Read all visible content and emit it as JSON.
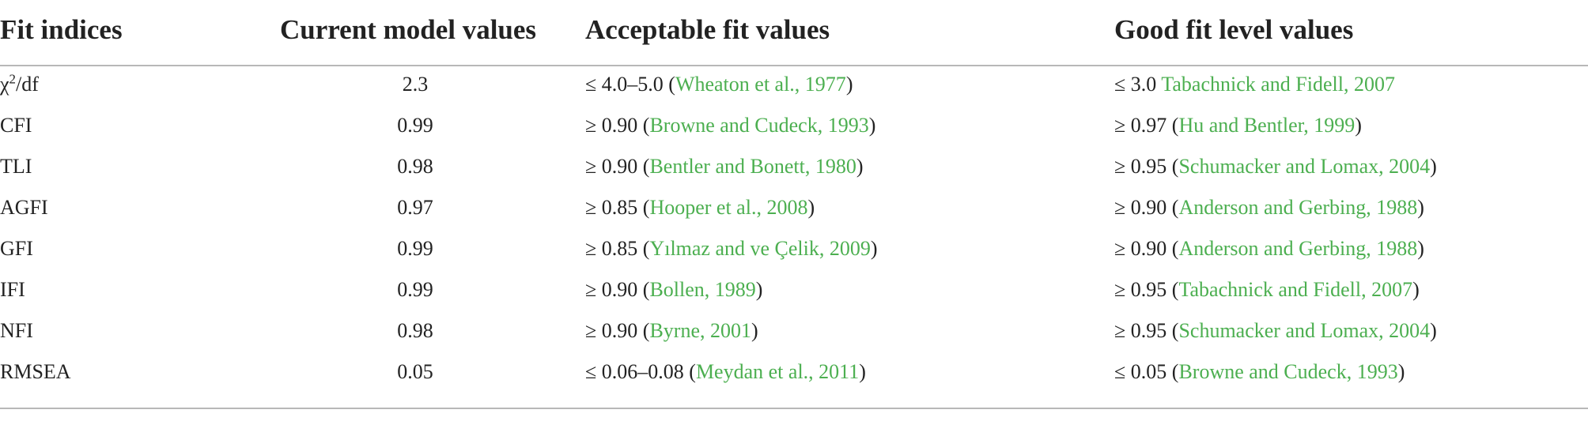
{
  "table": {
    "headers": [
      "Fit indices",
      "Current model values",
      "Acceptable fit values",
      "Good fit level values"
    ],
    "rows": [
      {
        "index_base": "χ",
        "index_sup": "2",
        "index_rest": "/df",
        "current": "2.3",
        "acceptable_prefix": "≤ 4.0–5.0 (",
        "acceptable_ref": "Wheaton et al., 1977",
        "acceptable_suffix": ")",
        "good_prefix": "≤ 3.0 ",
        "good_ref": "Tabachnick and Fidell, 2007",
        "good_suffix": ""
      },
      {
        "index": "CFI",
        "current": "0.99",
        "acceptable_prefix": "≥ 0.90 (",
        "acceptable_ref": "Browne and Cudeck, 1993",
        "acceptable_suffix": ")",
        "good_prefix": "≥ 0.97 (",
        "good_ref": "Hu and Bentler, 1999",
        "good_suffix": ")"
      },
      {
        "index": "TLI",
        "current": "0.98",
        "acceptable_prefix": "≥ 0.90 (",
        "acceptable_ref": "Bentler and Bonett, 1980",
        "acceptable_suffix": ")",
        "good_prefix": "≥ 0.95 (",
        "good_ref": "Schumacker and Lomax, 2004",
        "good_suffix": ")"
      },
      {
        "index": "AGFI",
        "current": "0.97",
        "acceptable_prefix": "≥ 0.85 (",
        "acceptable_ref": "Hooper et al., 2008",
        "acceptable_suffix": ")",
        "good_prefix": "≥ 0.90 (",
        "good_ref": "Anderson and Gerbing, 1988",
        "good_suffix": ")"
      },
      {
        "index": "GFI",
        "current": "0.99",
        "acceptable_prefix": "≥ 0.85 (",
        "acceptable_ref": "Yılmaz and ve Çelik, 2009",
        "acceptable_suffix": ")",
        "good_prefix": "≥ 0.90 (",
        "good_ref": "Anderson and Gerbing, 1988",
        "good_suffix": ")"
      },
      {
        "index": "IFI",
        "current": "0.99",
        "acceptable_prefix": "≥ 0.90 (",
        "acceptable_ref": "Bollen, 1989",
        "acceptable_suffix": ")",
        "good_prefix": "≥ 0.95 (",
        "good_ref": "Tabachnick and Fidell, 2007",
        "good_suffix": ")"
      },
      {
        "index": "NFI",
        "current": "0.98",
        "acceptable_prefix": "≥ 0.90 (",
        "acceptable_ref": "Byrne, 2001",
        "acceptable_suffix": ")",
        "good_prefix": "≥ 0.95 (",
        "good_ref": "Schumacker and Lomax, 2004",
        "good_suffix": ")"
      },
      {
        "index": "RMSEA",
        "current": "0.05",
        "acceptable_prefix": "≤ 0.06–0.08 (",
        "acceptable_ref": "Meydan et al., 2011",
        "acceptable_suffix": ")",
        "good_prefix": "≤ 0.05 (",
        "good_ref": "Browne and Cudeck, 1993",
        "good_suffix": ")"
      }
    ]
  },
  "colors": {
    "text": "#222222",
    "reference_link": "#4caf50",
    "rule": "#b8b8b8"
  }
}
